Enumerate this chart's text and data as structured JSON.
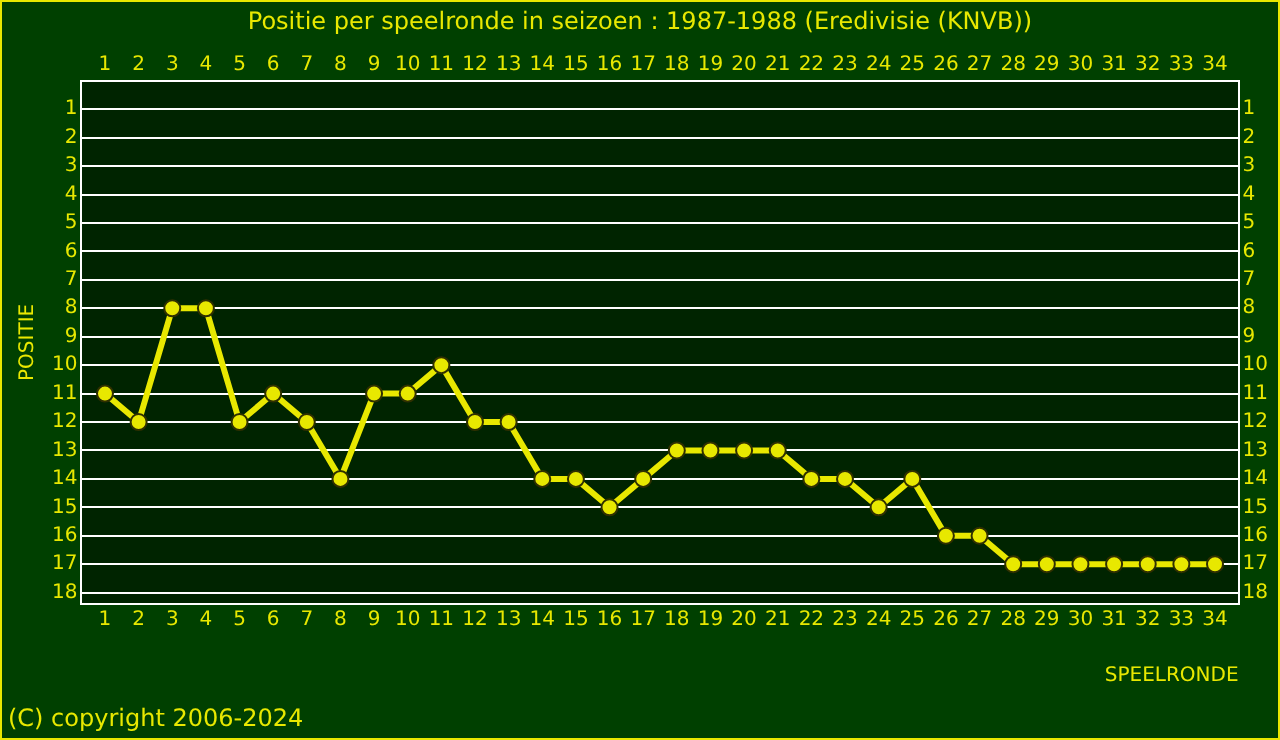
{
  "chart_data": {
    "type": "line",
    "title": "Positie per speelronde in seizoen : 1987-1988 (Eredivisie (KNVB))",
    "xlabel": "SPEELRONDE",
    "ylabel": "POSITIE",
    "x": [
      1,
      2,
      3,
      4,
      5,
      6,
      7,
      8,
      9,
      10,
      11,
      12,
      13,
      14,
      15,
      16,
      17,
      18,
      19,
      20,
      21,
      22,
      23,
      24,
      25,
      26,
      27,
      28,
      29,
      30,
      31,
      32,
      33,
      34
    ],
    "series": [
      {
        "color": "#e8e800",
        "values": [
          11,
          12,
          8,
          8,
          12,
          11,
          12,
          14,
          11,
          11,
          10,
          12,
          12,
          14,
          14,
          15,
          14,
          13,
          13,
          13,
          13,
          14,
          14,
          15,
          14,
          16,
          16,
          17,
          17,
          17,
          17,
          17,
          17,
          17
        ]
      }
    ],
    "xlim": [
      0.3,
      34.7
    ],
    "xticks": [
      1,
      2,
      3,
      4,
      5,
      6,
      7,
      8,
      9,
      10,
      11,
      12,
      13,
      14,
      15,
      16,
      17,
      18,
      19,
      20,
      21,
      22,
      23,
      24,
      25,
      26,
      27,
      28,
      29,
      30,
      31,
      32,
      33,
      34
    ],
    "x2lim": [
      0.3,
      34.7
    ],
    "x2ticks": [
      1,
      2,
      3,
      4,
      5,
      6,
      7,
      8,
      9,
      10,
      11,
      12,
      13,
      14,
      15,
      16,
      17,
      18,
      19,
      20,
      21,
      22,
      23,
      24,
      25,
      26,
      27,
      28,
      29,
      30,
      31,
      32,
      33,
      34
    ],
    "ylim": [
      18.4,
      0
    ],
    "yticks": [
      1,
      2,
      3,
      4,
      5,
      6,
      7,
      8,
      9,
      10,
      11,
      12,
      13,
      14,
      15,
      16,
      17,
      18
    ],
    "y2lim": [
      18.4,
      0
    ],
    "y2ticks": [
      1,
      2,
      3,
      4,
      5,
      6,
      7,
      8,
      9,
      10,
      11,
      12,
      13,
      14,
      15,
      16,
      17,
      18
    ],
    "grid": "y",
    "marker": "circle",
    "line_style": "solid",
    "annotations": [
      "(C) copyright 2006-2024"
    ]
  }
}
